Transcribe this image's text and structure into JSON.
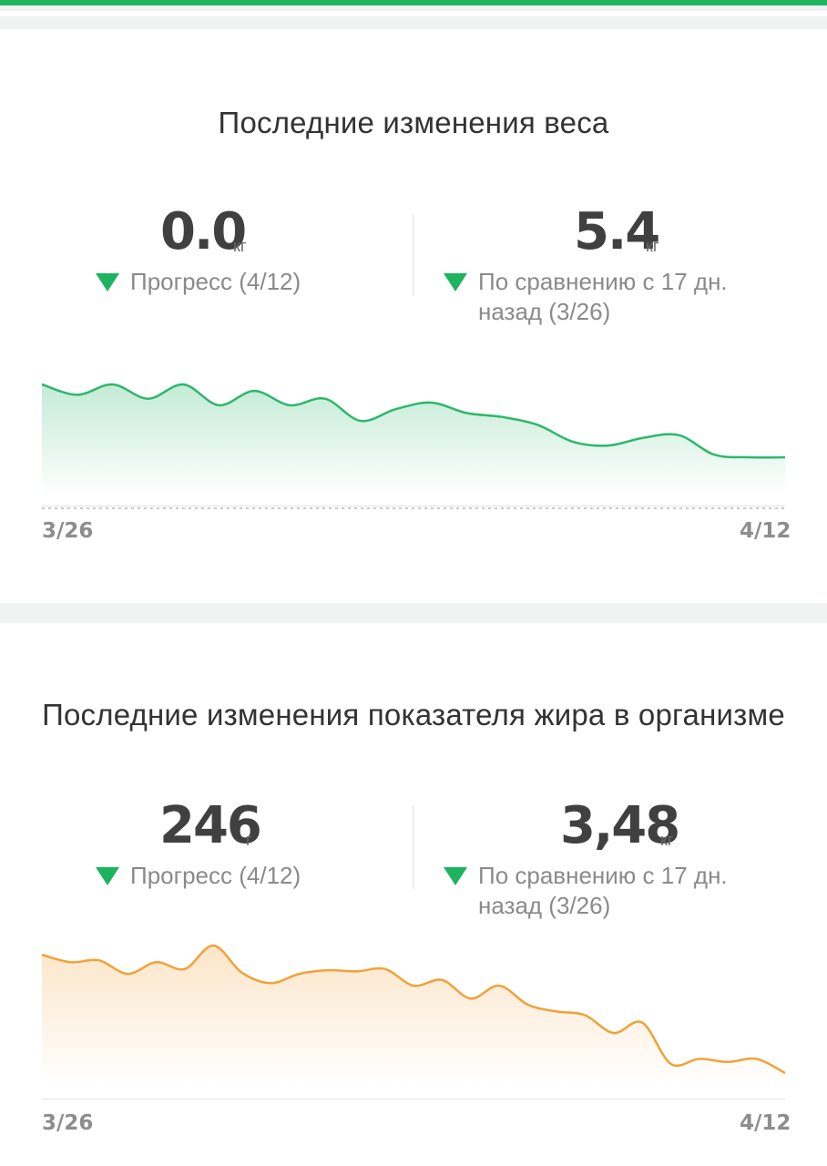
{
  "colors": {
    "accent": "#1eb35e",
    "weight_line": "#2cb86a",
    "fat_line": "#f0a23a",
    "background": "#ffffff",
    "separator": "#f1f3f3"
  },
  "weight": {
    "title": "Последние изменения веса",
    "progress": {
      "value": "0.0",
      "unit": "кг",
      "label": "Прогресс (4/12)",
      "icon": "triangle-down-icon"
    },
    "compare": {
      "value": "5.4",
      "unit": "кг",
      "label_line1": "По сравнению с 17 дн.",
      "label_line2": "назад (3/26)",
      "icon": "triangle-down-icon"
    },
    "x_start": "3/26",
    "x_end": "4/12"
  },
  "fat": {
    "title": "Последние изменения показателя жира в организме",
    "progress": {
      "value": "246",
      "unit": "г",
      "label": "Прогресс (4/12)",
      "icon": "triangle-down-icon"
    },
    "compare": {
      "value": "3,48",
      "unit": "кг",
      "label_line1": "По сравнению с 17 дн.",
      "label_line2": "назад (3/26)",
      "icon": "triangle-down-icon"
    },
    "x_start": "3/26",
    "x_end": "4/12"
  },
  "chart_data": [
    {
      "type": "area",
      "title": "Последние изменения веса",
      "x_range": [
        "3/26",
        "4/12"
      ],
      "values": [
        100,
        99.2,
        100,
        98.9,
        100,
        98.4,
        99.5,
        98.4,
        98.9,
        97.2,
        98.1,
        98.6,
        97.8,
        97.5,
        96.9,
        95.6,
        95.3,
        95.9,
        96.1,
        94.6,
        94.4,
        94.4
      ]
    },
    {
      "type": "area",
      "title": "Последние изменения показателя жира в организме",
      "x_range": [
        "3/26",
        "4/12"
      ],
      "values": [
        100,
        98.8,
        99.1,
        96.9,
        98.8,
        97.7,
        101.5,
        97.1,
        95.4,
        96.9,
        97.5,
        97.3,
        97.7,
        95,
        95.9,
        92.9,
        95,
        91.9,
        90.8,
        90.2,
        87.3,
        89,
        82.3,
        83.1,
        82.6,
        83.1,
        80.8
      ]
    }
  ]
}
